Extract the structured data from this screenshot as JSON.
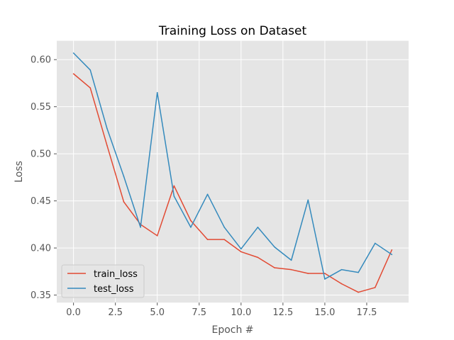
{
  "chart_data": {
    "type": "line",
    "title": "Training Loss on Dataset",
    "xlabel": "Epoch #",
    "ylabel": "Loss",
    "xlim": [
      -1,
      20
    ],
    "ylim": [
      0.342,
      0.62
    ],
    "x_ticks": [
      0,
      2.5,
      5,
      7.5,
      10,
      12.5,
      15,
      17.5
    ],
    "x_tick_labels": [
      "0.0",
      "2.5",
      "5.0",
      "7.5",
      "10.0",
      "12.5",
      "15.0",
      "17.5"
    ],
    "y_ticks": [
      0.35,
      0.4,
      0.45,
      0.5,
      0.55,
      0.6
    ],
    "y_tick_labels": [
      "0.35",
      "0.40",
      "0.45",
      "0.50",
      "0.55",
      "0.60"
    ],
    "grid": true,
    "legend_position": "bottom-left",
    "x": [
      0,
      1,
      2,
      3,
      4,
      5,
      6,
      7,
      8,
      9,
      10,
      11,
      12,
      13,
      14,
      15,
      16,
      17,
      18,
      19
    ],
    "series": [
      {
        "name": "train_loss",
        "color": "#E24A33",
        "values": [
          0.585,
          0.57,
          0.509,
          0.449,
          0.425,
          0.413,
          0.466,
          0.429,
          0.409,
          0.409,
          0.396,
          0.39,
          0.379,
          0.377,
          0.373,
          0.373,
          0.362,
          0.353,
          0.358,
          0.398
        ]
      },
      {
        "name": "test_loss",
        "color": "#348ABD",
        "values": [
          0.607,
          0.589,
          0.527,
          0.476,
          0.422,
          0.565,
          0.455,
          0.422,
          0.457,
          0.422,
          0.399,
          0.422,
          0.401,
          0.387,
          0.451,
          0.367,
          0.377,
          0.374,
          0.405,
          0.393
        ]
      }
    ]
  }
}
